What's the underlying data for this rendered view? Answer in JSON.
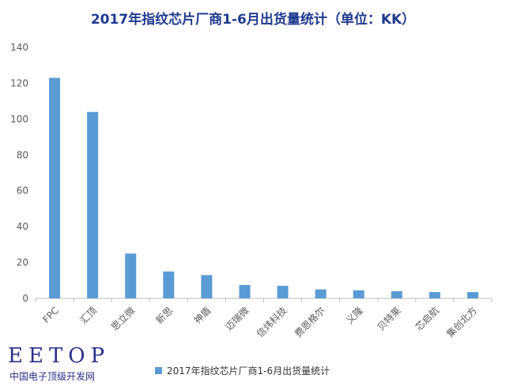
{
  "watermark": {
    "logo": "EETOP",
    "subtitle": "中国电子顶级开发网"
  },
  "chart_data": {
    "type": "bar",
    "title": "2017年指纹芯片厂商1-6月出货量统计（单位：KK）",
    "categories": [
      "FPC",
      "汇顶",
      "思立微",
      "新思",
      "神盾",
      "迈瑞微",
      "信炜科技",
      "费恩格尔",
      "义隆",
      "贝特莱",
      "芯启航",
      "集创北方"
    ],
    "series": [
      {
        "name": "2017年指纹芯片厂商1-6月出货量统计",
        "values": [
          123,
          104,
          25,
          15,
          13,
          7.5,
          7,
          5,
          4.5,
          4,
          3.5,
          3.5
        ]
      }
    ],
    "ylim": [
      0,
      140
    ],
    "yticks": [
      0,
      20,
      40,
      60,
      80,
      100,
      120,
      140
    ],
    "xlabel": "",
    "ylabel": "",
    "grid": false,
    "legend_position": "bottom",
    "colors": {
      "bar": "#5b9bd5",
      "axis": "#bfbfbf",
      "text": "#595959",
      "title": "#1f3a8f"
    }
  }
}
